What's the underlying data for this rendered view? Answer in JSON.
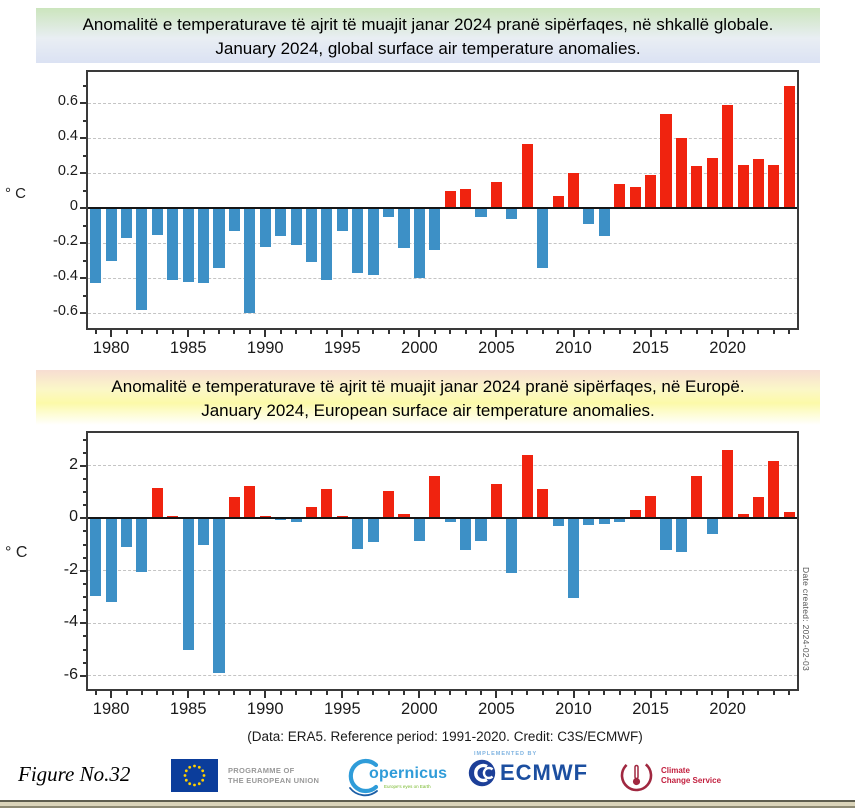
{
  "chart_data": [
    {
      "type": "bar",
      "title": "Anomalitë e temperaturave të ajrit të muajit janar 2024 pranë sipërfaqes, në shkallë globale.",
      "subtitle": "January 2024, global surface air temperature anomalies.",
      "ylabel": "° C",
      "xlabel": "",
      "x": [
        1979,
        1980,
        1981,
        1982,
        1983,
        1984,
        1985,
        1986,
        1987,
        1988,
        1989,
        1990,
        1991,
        1992,
        1993,
        1994,
        1995,
        1996,
        1997,
        1998,
        1999,
        2000,
        2001,
        2002,
        2003,
        2004,
        2005,
        2006,
        2007,
        2008,
        2009,
        2010,
        2011,
        2012,
        2013,
        2014,
        2015,
        2016,
        2017,
        2018,
        2019,
        2020,
        2021,
        2022,
        2023,
        2024
      ],
      "values": [
        -0.43,
        -0.3,
        -0.17,
        -0.58,
        -0.15,
        -0.41,
        -0.42,
        -0.43,
        -0.34,
        -0.13,
        -0.6,
        -0.22,
        -0.16,
        -0.21,
        -0.31,
        -0.41,
        -0.13,
        -0.37,
        -0.38,
        -0.05,
        -0.23,
        -0.4,
        -0.24,
        0.1,
        0.11,
        -0.05,
        0.15,
        -0.06,
        0.37,
        -0.34,
        0.07,
        0.2,
        -0.09,
        -0.16,
        0.14,
        0.12,
        0.19,
        0.54,
        0.4,
        0.24,
        0.29,
        0.59,
        0.25,
        0.28,
        0.25,
        0.7
      ],
      "ylim": [
        -0.685,
        0.78
      ],
      "yticks": [
        0.6,
        0.4,
        0.2,
        0,
        -0.2,
        -0.4,
        -0.6
      ],
      "ytick_minor_step": 0.1,
      "xticks": [
        1980,
        1985,
        1990,
        1995,
        2000,
        2005,
        2010,
        2015,
        2020
      ],
      "grid": "horizontal-dashed",
      "legend": "none",
      "colors": {
        "positive": "#f0230f",
        "negative": "#3d90c6"
      }
    },
    {
      "type": "bar",
      "title": "Anomalitë e temperaturave të ajrit të muajit janar 2024 pranë sipërfaqes, në Europë.",
      "subtitle": "January 2024, European surface air temperature anomalies.",
      "ylabel": "° C",
      "xlabel": "",
      "x": [
        1979,
        1980,
        1981,
        1982,
        1983,
        1984,
        1985,
        1986,
        1987,
        1988,
        1989,
        1990,
        1991,
        1992,
        1993,
        1994,
        1995,
        1996,
        1997,
        1998,
        1999,
        2000,
        2001,
        2002,
        2003,
        2004,
        2005,
        2006,
        2007,
        2008,
        2009,
        2010,
        2011,
        2012,
        2013,
        2014,
        2015,
        2016,
        2017,
        2018,
        2019,
        2020,
        2021,
        2022,
        2023,
        2024
      ],
      "values": [
        -2.95,
        -3.2,
        -1.1,
        -2.05,
        1.15,
        0.1,
        -5.0,
        -1.0,
        -5.9,
        0.8,
        1.25,
        0.1,
        -0.05,
        -0.15,
        0.45,
        1.1,
        0.1,
        -1.15,
        -0.9,
        1.05,
        0.15,
        -0.85,
        1.6,
        -0.15,
        -1.2,
        -0.85,
        1.3,
        -2.1,
        2.4,
        1.1,
        -0.3,
        -3.05,
        -0.25,
        -0.2,
        -0.15,
        0.3,
        0.85,
        -1.2,
        -1.3,
        1.6,
        -0.6,
        2.6,
        0.15,
        0.8,
        2.2,
        0.25
      ],
      "ylim": [
        -6.5,
        3.25
      ],
      "yticks": [
        2,
        0,
        -2,
        -4,
        -6
      ],
      "ytick_minor_step": 0.5,
      "xticks": [
        1980,
        1985,
        1990,
        1995,
        2000,
        2005,
        2010,
        2015,
        2020
      ],
      "grid": "horizontal-dashed",
      "legend": "none",
      "colors": {
        "positive": "#f0230f",
        "negative": "#3d90c6"
      }
    }
  ],
  "footer": {
    "data_note": "(Data: ERA5.  Reference period: 1991-2020.  Credit: C3S/ECMWF)",
    "date_created": "Date created: 2024-02-03",
    "figure_label": "Figure No.32",
    "logos": {
      "eu_programme_line1": "PROGRAMME OF",
      "eu_programme_line2": "THE EUROPEAN UNION",
      "copernicus_name": "opernicus",
      "copernicus_tagline": "Europe's eyes on Earth",
      "implemented_by": "IMPLEMENTED BY",
      "ecmwf_name": "ECMWF",
      "c3s_line1": "Climate",
      "c3s_line2": "Change Service"
    }
  }
}
